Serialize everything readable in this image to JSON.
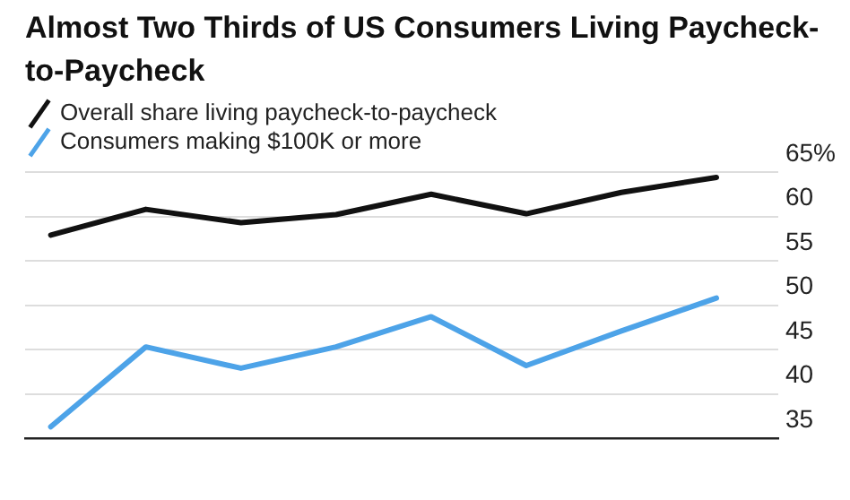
{
  "chart_data": {
    "type": "line",
    "title": "Almost Two Thirds of US Consumers Living Paycheck-to-Paycheck",
    "categories": [
      null,
      null,
      null,
      null,
      null,
      null,
      null,
      null
    ],
    "series": [
      {
        "name": "Overall share living paycheck-to-paycheck",
        "color": "#111111",
        "values": [
          57.9,
          60.8,
          59.3,
          60.2,
          62.5,
          60.3,
          62.7,
          64.4
        ]
      },
      {
        "name": "Consumers making $100K or more",
        "color": "#4da3e8",
        "values": [
          36.3,
          45.3,
          42.9,
          45.3,
          48.7,
          43.2,
          47.1,
          50.8
        ]
      }
    ],
    "ylim": [
      35,
      65
    ],
    "yticks": [
      35,
      40,
      45,
      50,
      55,
      60,
      {
        "value": 65,
        "label": "65%"
      }
    ],
    "grid": "y",
    "legend": "top left",
    "marker": "none",
    "line_style": "solid"
  }
}
